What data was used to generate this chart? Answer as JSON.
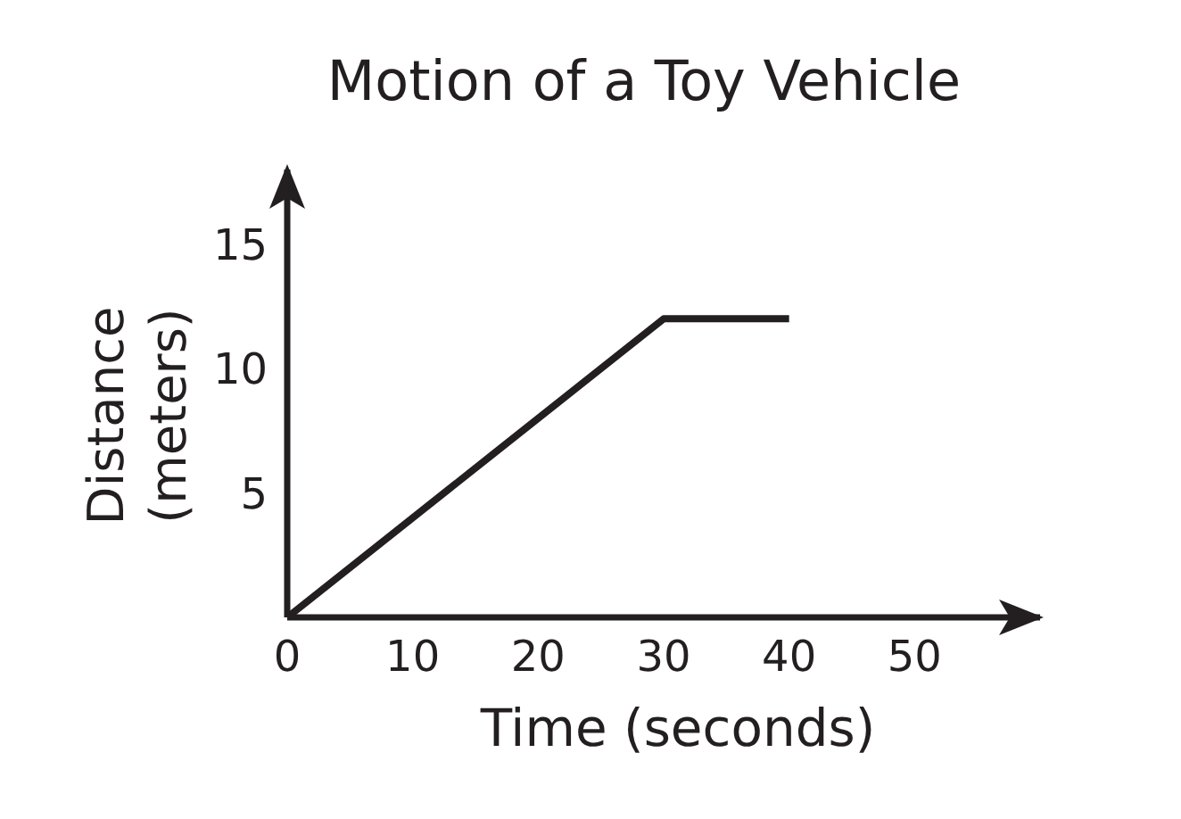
{
  "chart_data": {
    "type": "line",
    "title": "Motion of a Toy Vehicle",
    "xlabel": "Time (seconds)",
    "ylabel": "Distance\n(meters)",
    "x": [
      0,
      30,
      40
    ],
    "values": [
      0,
      12,
      12
    ],
    "color": "#231f20",
    "xlim": [
      0,
      60
    ],
    "xticks": [
      0,
      10,
      20,
      30,
      40,
      50
    ],
    "ylim": [
      0,
      18
    ],
    "yticks": [
      5,
      10,
      15
    ],
    "marker": "none",
    "line_style": "solid"
  }
}
